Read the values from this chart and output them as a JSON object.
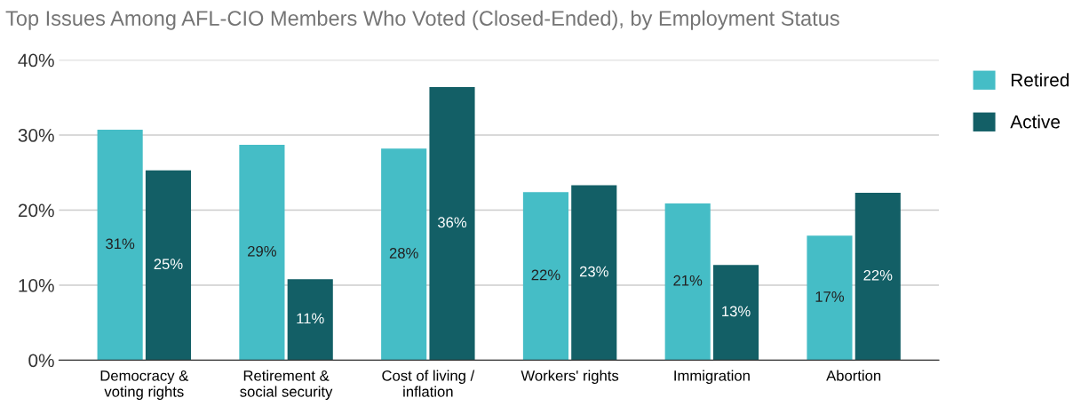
{
  "chart_data": {
    "type": "bar",
    "title": "Top Issues Among AFL-CIO Members Who Voted (Closed-Ended), by Employment Status",
    "categories": [
      "Democracy &\nvoting rights",
      "Retirement &\nsocial security",
      "Cost of living /\ninflation",
      "Workers' rights",
      "Immigration",
      "Abortion"
    ],
    "series": [
      {
        "name": "Retired",
        "color": "#45bdc6",
        "values": [
          30.7,
          28.7,
          28.2,
          22.4,
          20.9,
          16.6
        ],
        "value_labels": [
          "31%",
          "29%",
          "28%",
          "22%",
          "21%",
          "17%"
        ]
      },
      {
        "name": "Active",
        "color": "#135f66",
        "values": [
          25.3,
          10.8,
          36.4,
          23.3,
          12.7,
          22.3
        ],
        "value_labels": [
          "25%",
          "11%",
          "36%",
          "23%",
          "13%",
          "22%"
        ]
      }
    ],
    "ylim": [
      0,
      40
    ],
    "yticks": [
      {
        "value": 0,
        "label": "0%"
      },
      {
        "value": 10,
        "label": "10%"
      },
      {
        "value": 20,
        "label": "20%"
      },
      {
        "value": 30,
        "label": "30%"
      },
      {
        "value": 40,
        "label": "40%"
      }
    ],
    "grid": "y",
    "legend": "top right"
  }
}
